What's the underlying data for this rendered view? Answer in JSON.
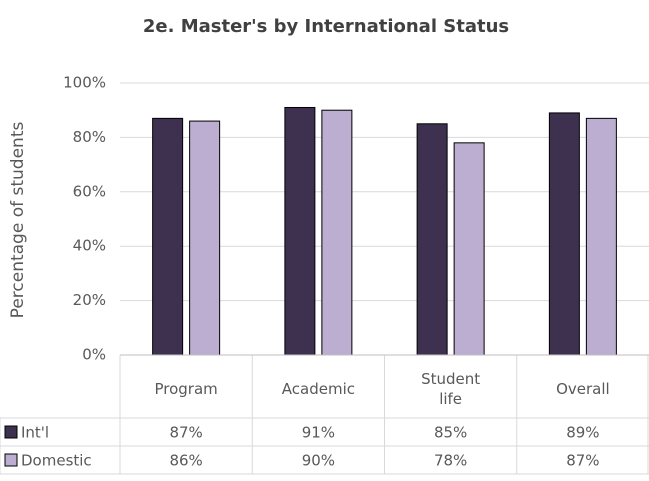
{
  "chart_data": {
    "type": "bar",
    "title": "2e. Master's by International Status",
    "y_label": "Percentage of students",
    "categories": [
      "Program",
      "Academic",
      "Student life",
      "Overall"
    ],
    "series": [
      {
        "name": "Int'l",
        "color": "#3e3150",
        "values": [
          87,
          91,
          85,
          89
        ],
        "value_labels": [
          "87%",
          "91%",
          "85%",
          "89%"
        ]
      },
      {
        "name": "Domestic",
        "color": "#bcaed1",
        "values": [
          86,
          90,
          78,
          87
        ],
        "value_labels": [
          "86%",
          "90%",
          "78%",
          "87%"
        ]
      }
    ],
    "ylim": [
      0,
      100
    ],
    "yticks": [
      {
        "value": 0,
        "label": "0%"
      },
      {
        "value": 20,
        "label": "20%"
      },
      {
        "value": 40,
        "label": "40%"
      },
      {
        "value": 60,
        "label": "60%"
      },
      {
        "value": 80,
        "label": "80%"
      },
      {
        "value": 100,
        "label": "100%"
      }
    ],
    "grid": true
  }
}
